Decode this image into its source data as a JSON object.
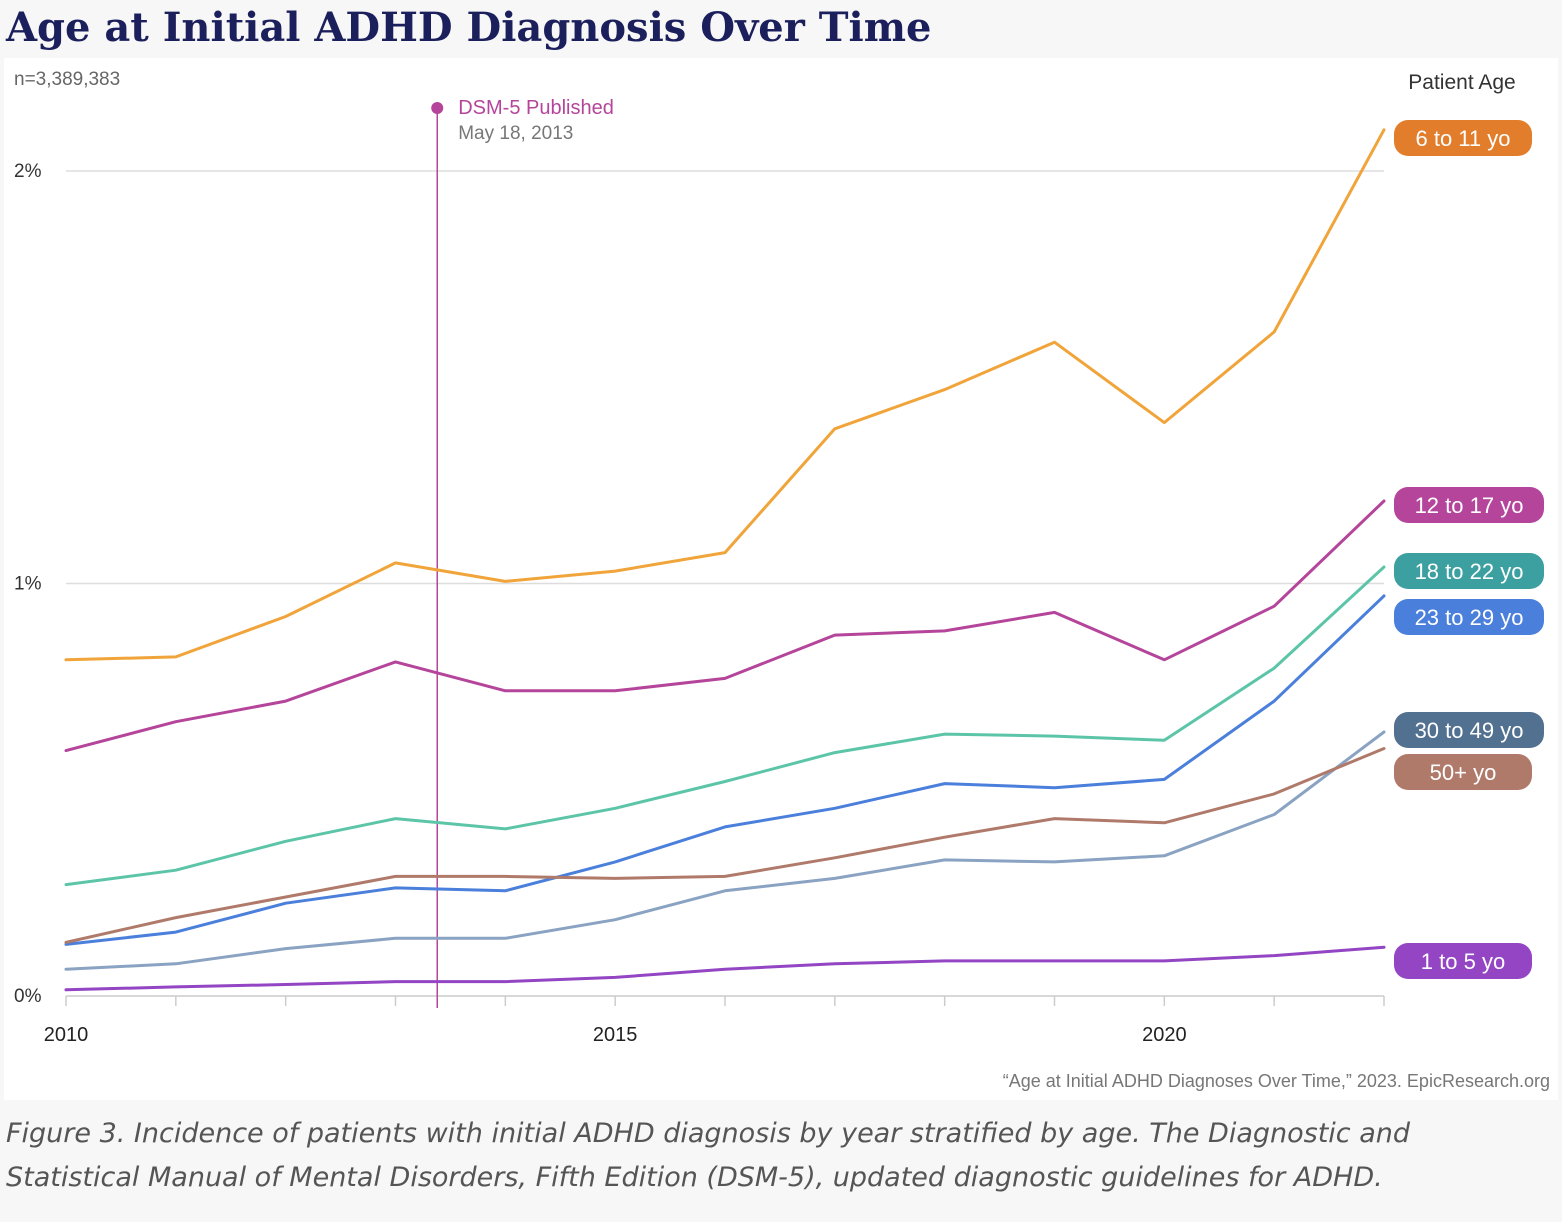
{
  "title": "Age at Initial ADHD Diagnosis Over Time",
  "sample_size": "n=3,389,383",
  "legend_title": "Patient Age",
  "annotation": {
    "label": "DSM-5 Published",
    "date": "May 18, 2013",
    "x": 2013.38,
    "color": "#b5459b"
  },
  "source": "“Age at Initial ADHD Diagnoses Over Time,” 2023. EpicResearch.org",
  "caption": "Figure 3. Incidence of patients with initial ADHD diagnosis by year stratified by age. The Diagnostic and Statistical Manual of Mental Disorders, Fifth Edition (DSM-5), updated diagnostic guidelines for ADHD.",
  "chart_data": {
    "type": "line",
    "x": [
      2010,
      2011,
      2012,
      2013,
      2014,
      2015,
      2016,
      2017,
      2018,
      2019,
      2020,
      2021,
      2022
    ],
    "xlim": [
      2010,
      2022
    ],
    "ylim": [
      0,
      2.2
    ],
    "x_ticks": [
      2010,
      2015,
      2020
    ],
    "x_tick_labels": [
      "2010",
      "2015",
      "2020"
    ],
    "y_ticks": [
      0,
      1,
      2
    ],
    "y_tick_labels": [
      "0%",
      "1%",
      "2%"
    ],
    "grid": true,
    "legend_placement": "right, labels at line ends",
    "series": [
      {
        "name": "6 to 11 yo",
        "color": "#f0a43a",
        "label_color": "#e27d2c",
        "values": [
          0.815,
          0.822,
          0.92,
          1.05,
          1.005,
          1.03,
          1.075,
          1.375,
          1.47,
          1.585,
          1.39,
          1.61,
          2.1
        ]
      },
      {
        "name": "12 to 17 yo",
        "color": "#b5459b",
        "label_color": "#b5459b",
        "values": [
          0.595,
          0.665,
          0.715,
          0.81,
          0.74,
          0.74,
          0.77,
          0.875,
          0.885,
          0.93,
          0.815,
          0.945,
          1.2
        ]
      },
      {
        "name": "18 to 22 yo",
        "color": "#5cc5a8",
        "label_color": "#3c9fa0",
        "values": [
          0.27,
          0.305,
          0.375,
          0.43,
          0.405,
          0.455,
          0.52,
          0.59,
          0.635,
          0.63,
          0.62,
          0.795,
          1.04
        ]
      },
      {
        "name": "23 to 29 yo",
        "color": "#4a7fdb",
        "label_color": "#4a7fdb",
        "values": [
          0.125,
          0.155,
          0.225,
          0.262,
          0.255,
          0.325,
          0.41,
          0.455,
          0.515,
          0.505,
          0.525,
          0.715,
          0.97
        ]
      },
      {
        "name": "30 to 49 yo",
        "color": "#8aa3c2",
        "label_color": "#52708f",
        "values": [
          0.065,
          0.078,
          0.115,
          0.14,
          0.14,
          0.185,
          0.255,
          0.285,
          0.33,
          0.325,
          0.34,
          0.44,
          0.64
        ]
      },
      {
        "name": "50+ yo",
        "color": "#b07a6b",
        "label_color": "#b07a6b",
        "values": [
          0.13,
          0.19,
          0.24,
          0.29,
          0.29,
          0.285,
          0.29,
          0.335,
          0.385,
          0.43,
          0.42,
          0.49,
          0.6
        ]
      },
      {
        "name": "1 to 5 yo",
        "color": "#9345c3",
        "label_color": "#9345c3",
        "values": [
          0.015,
          0.022,
          0.028,
          0.035,
          0.035,
          0.045,
          0.065,
          0.078,
          0.085,
          0.085,
          0.085,
          0.098,
          0.118
        ]
      }
    ]
  }
}
